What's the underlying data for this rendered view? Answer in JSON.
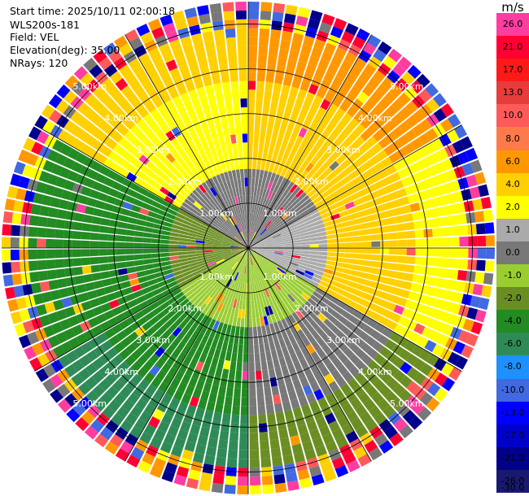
{
  "header": {
    "start_time": "Start time: 2025/10/11 02:00:18",
    "station": "WLS200s-181",
    "field": "Field: VEL",
    "elevation": "Elevation(deg): 35.00",
    "nrays": "NRays: 120"
  },
  "chart_data": {
    "type": "heatmap",
    "projection": "polar-ppi",
    "field": "VEL",
    "unit": "m/s",
    "n_rays": 120,
    "n_gates": 28,
    "max_range_km": 5.5,
    "range_rings_km": [
      1.0,
      2.0,
      3.0,
      4.0,
      5.0
    ],
    "ring_labels": [
      "1.00km",
      "2.00km",
      "3.00km",
      "4.00km",
      "5.00km"
    ],
    "spoke_angles_deg": [
      0,
      30,
      60,
      90,
      120,
      150,
      180,
      210,
      240,
      270,
      300,
      330
    ],
    "colorbar": {
      "ticks": [
        26.0,
        21.0,
        17.0,
        13.0,
        10.0,
        8.0,
        6.0,
        4.0,
        2.0,
        1.0,
        0.0,
        -1.0,
        -2.0,
        -4.0,
        -6.0,
        -8.0,
        -10.0,
        -13.0,
        -17.0,
        -21.0,
        -26.0,
        -30.0
      ],
      "tick_labels": [
        "26.0",
        "21.0",
        "17.0",
        "13.0",
        "10.0",
        "8.0",
        "6.0",
        "4.0",
        "2.0",
        "1.0",
        "0.0",
        "-1.0",
        "-2.0",
        "-4.0",
        "-6.0",
        "-8.0",
        "-10.0",
        "-13.0",
        "-17.0",
        "-21.0",
        "-26.0",
        "-30.0"
      ],
      "colors": [
        "#ff3ca0",
        "#ff0033",
        "#ff1a1a",
        "#e63c3c",
        "#ff5a5a",
        "#ff7a4a",
        "#ff9800",
        "#ffd000",
        "#ffff00",
        "#aaaaaa",
        "#787878",
        "#9acd32",
        "#6b8e23",
        "#228b22",
        "#2e8b57",
        "#1e90ff",
        "#4169e1",
        "#0000ff",
        "#0000cd",
        "#00008b",
        "#191970"
      ]
    },
    "sectors": [
      {
        "az_from": 0,
        "az_to": 60,
        "near": "0.0",
        "mid": "4.0",
        "far": "6.0",
        "edge": "noisy"
      },
      {
        "az_from": 60,
        "az_to": 120,
        "near": "1.0",
        "mid": "4.0",
        "far": "2.0",
        "edge": "noisy"
      },
      {
        "az_from": 120,
        "az_to": 180,
        "near": "-1.0",
        "mid": "0.0",
        "far": "-2.0",
        "edge": "noisy"
      },
      {
        "az_from": 180,
        "az_to": 240,
        "near": "-1.0",
        "mid": "-4.0",
        "far": "-6.0",
        "edge": "noisy"
      },
      {
        "az_from": 240,
        "az_to": 300,
        "near": "-2.0",
        "mid": "-4.0",
        "far": "-4.0",
        "edge": "noisy"
      },
      {
        "az_from": 300,
        "az_to": 360,
        "near": "0.0",
        "mid": "2.0",
        "far": "4.0",
        "edge": "noisy"
      }
    ]
  }
}
